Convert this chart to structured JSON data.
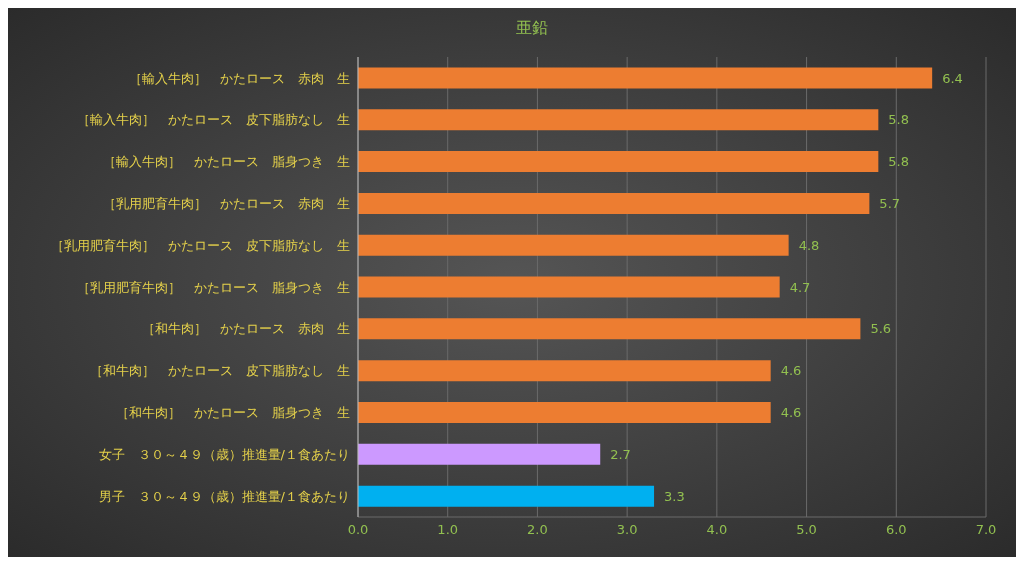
{
  "chart_data": {
    "type": "bar",
    "orientation": "horizontal",
    "title": "亜鉛",
    "categories": [
      "［輸入牛肉］　かたロース　赤肉　生",
      "［輸入牛肉］　かたロース　皮下脂肪なし　生",
      "［輸入牛肉］　かたロース　脂身つき　生",
      "［乳用肥育牛肉］　かたロース　赤肉　生",
      "［乳用肥育牛肉］　かたロース　皮下脂肪なし　生",
      "［乳用肥育牛肉］　かたロース　脂身つき　生",
      "［和牛肉］　かたロース　赤肉　生",
      "［和牛肉］　かたロース　皮下脂肪なし　生",
      "［和牛肉］　かたロース　脂身つき　生",
      "女子　３０～４９（歳）推進量/１食あたり",
      "男子　３０～４９（歳）推進量/１食あたり"
    ],
    "values": [
      6.4,
      5.8,
      5.8,
      5.7,
      4.8,
      4.7,
      5.6,
      4.6,
      4.6,
      2.7,
      3.3
    ],
    "colors": [
      "#ed7d31",
      "#ed7d31",
      "#ed7d31",
      "#ed7d31",
      "#ed7d31",
      "#ed7d31",
      "#ed7d31",
      "#ed7d31",
      "#ed7d31",
      "#cc99ff",
      "#00b0f0"
    ],
    "xlim": [
      0,
      7
    ],
    "xticks": [
      {
        "value": 0,
        "label": "0.0"
      },
      {
        "value": 1,
        "label": "1.0"
      },
      {
        "value": 2,
        "label": "2.0"
      },
      {
        "value": 3,
        "label": "3.0"
      },
      {
        "value": 4,
        "label": "4.0"
      },
      {
        "value": 5,
        "label": "5.0"
      },
      {
        "value": 6,
        "label": "6.0"
      },
      {
        "value": 7,
        "label": "7.0"
      }
    ],
    "grid": "x",
    "data_labels": true
  }
}
